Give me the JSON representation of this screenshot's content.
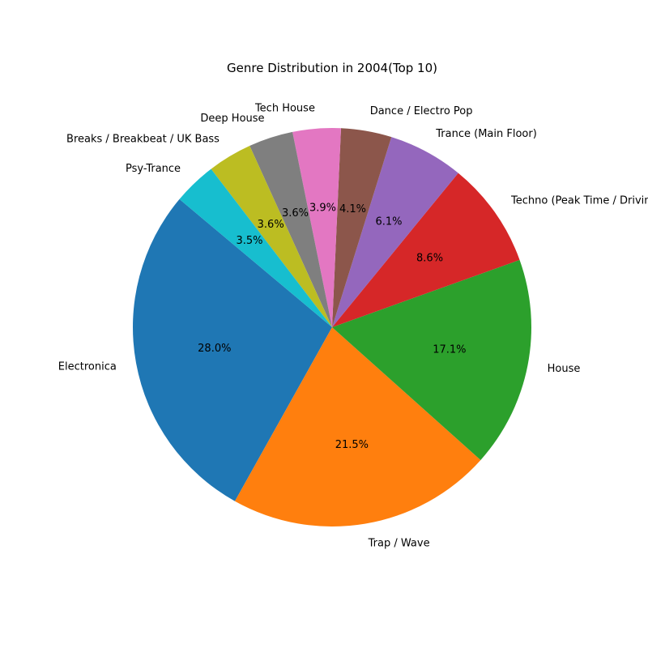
{
  "chart_data": {
    "type": "pie",
    "title": "Genre Distribution in 2004(Top 10)",
    "start_angle_deg": 140,
    "direction": "counterclockwise",
    "slices": [
      {
        "label": "Electronica",
        "value": 28.0,
        "pct_label": "28.0%",
        "color": "#1f77b4"
      },
      {
        "label": "Trap / Wave",
        "value": 21.5,
        "pct_label": "21.5%",
        "color": "#ff7f0e"
      },
      {
        "label": "House",
        "value": 17.1,
        "pct_label": "17.1%",
        "color": "#2ca02c"
      },
      {
        "label": "Techno (Peak Time / Driving)",
        "value": 8.6,
        "pct_label": "8.6%",
        "color": "#d62728"
      },
      {
        "label": "Trance (Main Floor)",
        "value": 6.1,
        "pct_label": "6.1%",
        "color": "#9467bd"
      },
      {
        "label": "Dance / Electro Pop",
        "value": 4.1,
        "pct_label": "4.1%",
        "color": "#8c564b"
      },
      {
        "label": "Tech House",
        "value": 3.9,
        "pct_label": "3.9%",
        "color": "#e377c2"
      },
      {
        "label": "Deep House",
        "value": 3.6,
        "pct_label": "3.6%",
        "color": "#7f7f7f"
      },
      {
        "label": "Breaks / Breakbeat / UK Bass",
        "value": 3.6,
        "pct_label": "3.6%",
        "color": "#bcbd22"
      },
      {
        "label": "Psy-Trance",
        "value": 3.5,
        "pct_label": "3.5%",
        "color": "#17becf"
      }
    ]
  }
}
